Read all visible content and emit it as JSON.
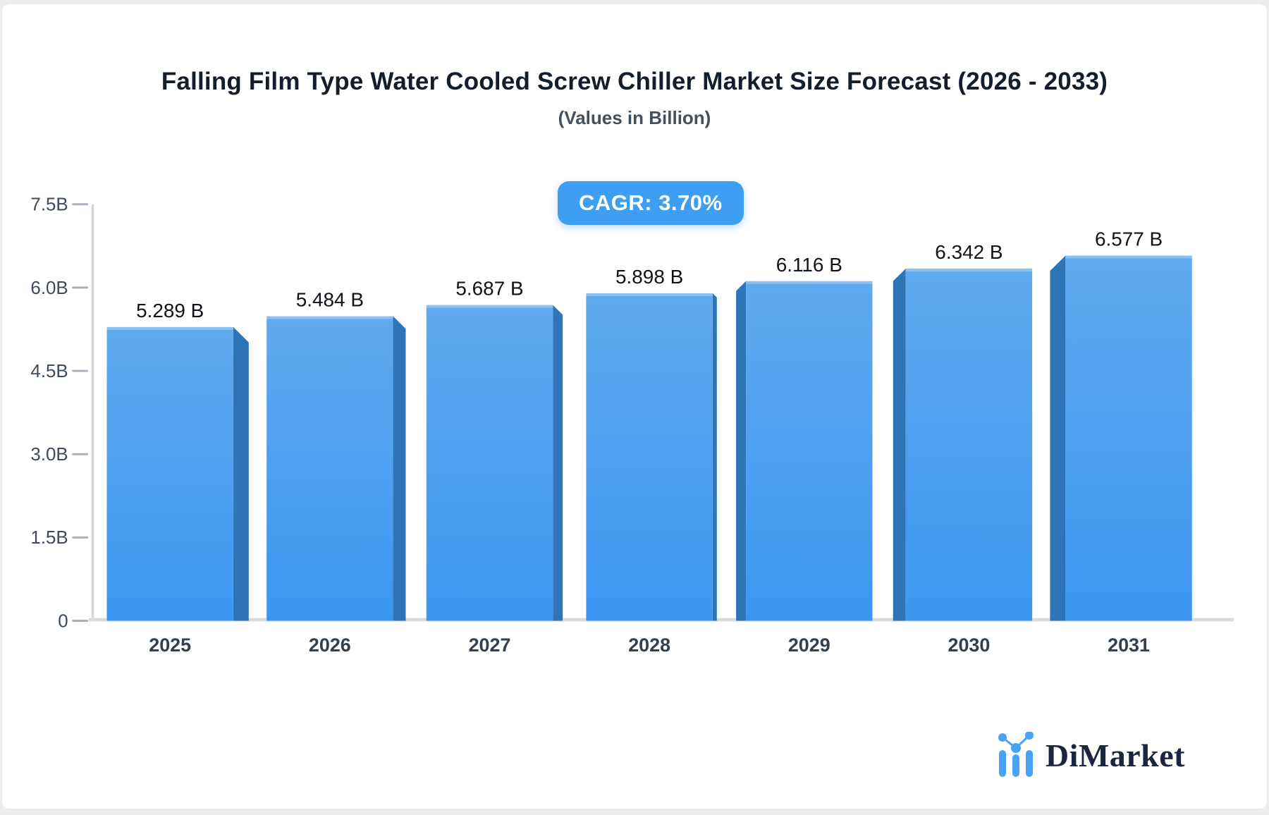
{
  "page": {
    "background": "#ecedef",
    "card_background": "#ffffff"
  },
  "header": {
    "title": "Falling Film Type Water Cooled Screw Chiller Market Size Forecast (2026 - 2033)",
    "subtitle": "(Values in Billion)"
  },
  "badge": {
    "label": "CAGR: 3.70%",
    "background": "#3e9ef2",
    "text_color": "#ffffff"
  },
  "chart_data": {
    "type": "bar",
    "title": "Falling Film Type Water Cooled Screw Chiller Market Size Forecast (2026 - 2033)",
    "subtitle": "(Values in Billion)",
    "categories": [
      "2025",
      "2026",
      "2027",
      "2028",
      "2029",
      "2030",
      "2031"
    ],
    "values": [
      5.289,
      5.484,
      5.687,
      5.898,
      6.116,
      6.342,
      6.577
    ],
    "value_labels": [
      "5.289 B",
      "5.484 B",
      "5.687 B",
      "5.898 B",
      "6.116 B",
      "6.342 B",
      "6.577 B"
    ],
    "xlabel": "",
    "ylabel": "",
    "unit": "Billion",
    "ylim": [
      0,
      7.5
    ],
    "y_tick_values": [
      0,
      1.5,
      3,
      4.5,
      6,
      7.5
    ],
    "y_tick_labels": [
      "0",
      "1.5B",
      "3.0B",
      "4.5B",
      "6.0B",
      "7.5B"
    ],
    "grid": false,
    "legend": "none",
    "style": {
      "bar_gradient_top": "#60aaee",
      "bar_gradient_bottom": "#3c96f1",
      "bar_side_color": "#2e75b7",
      "bar_top_highlight": "rgba(255,255,255,0.28)",
      "axis_line_color": "#d3d7db",
      "baseline_color": "#d9dcde",
      "tick_dash_color": "#a9b2bc",
      "y_tick_label_color": "#3f4b5b",
      "category_label_color": "#333e4e",
      "value_label_color": "#101418"
    }
  },
  "logo": {
    "name": "DiMarket",
    "text_color": "#1b2540",
    "icon": "combo-chart-icon",
    "icon_color": "#4aa2f7"
  }
}
